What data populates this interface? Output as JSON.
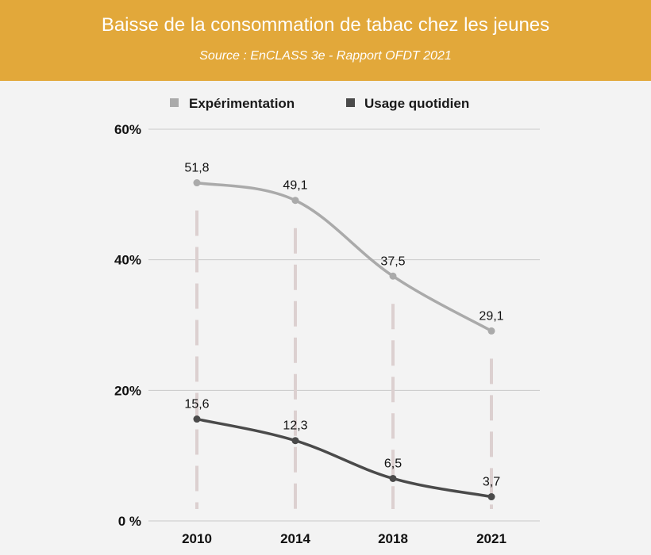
{
  "header": {
    "title": "Baisse de la consommation de tabac chez les jeunes",
    "source": "Source : EnCLASS 3e - Rapport OFDT 2021"
  },
  "colors": {
    "header_bg": "#e2a83a",
    "series_1": "#aaaaaa",
    "series_2": "#4a4a4a",
    "dash": "#dcd0d0",
    "grid": "#c9c9c9"
  },
  "chart_data": {
    "type": "line",
    "x": [
      "2010",
      "2014",
      "2018",
      "2021"
    ],
    "ylim": [
      0,
      60
    ],
    "yticks": [
      {
        "value": 0,
        "label": "0 %"
      },
      {
        "value": 20,
        "label": "20%"
      },
      {
        "value": 40,
        "label": "40%"
      },
      {
        "value": 60,
        "label": "60%"
      }
    ],
    "grid": true,
    "legend_position": "top",
    "series": [
      {
        "name": "Expérimentation",
        "values": [
          51.8,
          49.1,
          37.5,
          29.1
        ],
        "labels": [
          "51,8",
          "49,1",
          "37,5",
          "29,1"
        ],
        "color": "#aaaaaa"
      },
      {
        "name": "Usage quotidien",
        "values": [
          15.6,
          12.3,
          6.5,
          3.7
        ],
        "labels": [
          "15,6",
          "12,3",
          "6,5",
          "3,7"
        ],
        "color": "#4a4a4a"
      }
    ]
  }
}
